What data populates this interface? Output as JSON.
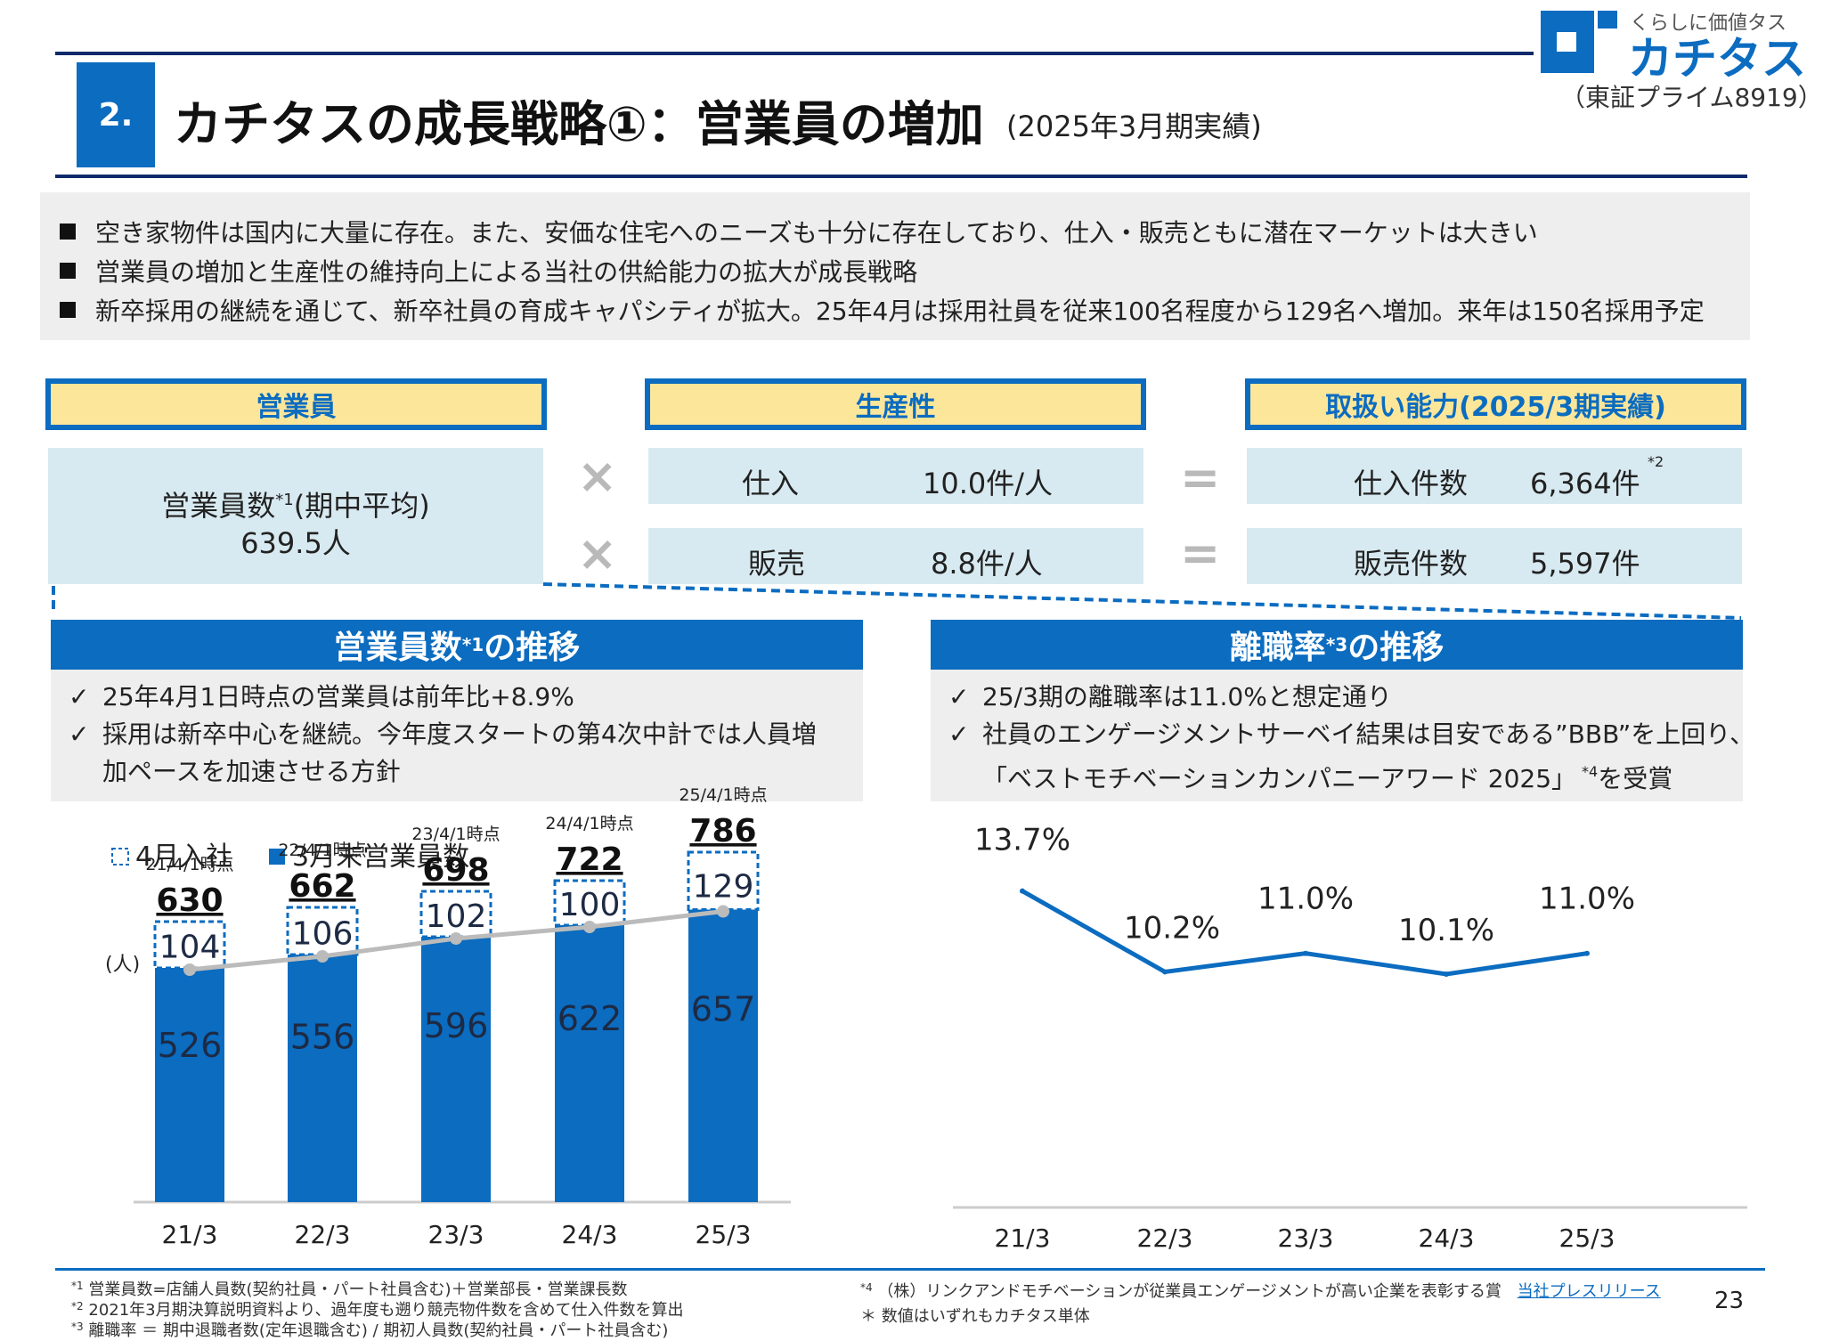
{
  "header": {
    "section_number": "2.",
    "title": "カチタスの成長戦略①：営業員の増加",
    "subtitle": "(2025年3月期実績)",
    "logo_tagline": "くらしに価値タス",
    "logo_name": "カチタス",
    "stock_code": "（東証プライム8919）"
  },
  "bullets": [
    "空き家物件は国内に大量に存在。また、安価な住宅へのニーズも十分に存在しており、仕入・販売ともに潜在マーケットは大きい",
    "営業員の増加と生産性の維持向上による当社の供給能力の拡大が成長戦略",
    "新卒採用の継続を通じて、新卒社員の育成キャパシティが拡大。25年4月は採用社員を従来100名程度から129名へ増加。来年は150名採用予定"
  ],
  "formula": {
    "staff_header": "営業員",
    "productivity_header": "生産性",
    "capacity_header": "取扱い能力(2025/3期実績)",
    "staff_label_a": "営業員数",
    "staff_label_mark": "*1",
    "staff_label_b": "(期中平均)",
    "staff_value": "639.5人",
    "multiply": "×",
    "equals": "=",
    "purchase_label": "仕入",
    "purchase_value": "10.0件/人",
    "sales_label": "販売",
    "sales_value": "8.8件/人",
    "purchase_count_label": "仕入件数",
    "purchase_count_value": "6,364件",
    "purchase_count_note": "*2",
    "sales_count_label": "販売件数",
    "sales_count_value": "5,597件"
  },
  "left_panel": {
    "title_a": "営業員数",
    "title_mark": "*1",
    "title_b": "の推移",
    "check": "✓",
    "points": [
      "25年4月1日時点の営業員は前年比+8.9%",
      "採用は新卒中心を継続。今年度スタートの第4次中計では人員増",
      "加ペースを加速させる方針"
    ]
  },
  "right_panel": {
    "title_a": "離職率",
    "title_mark": "*3",
    "title_b": "の推移",
    "check": "✓",
    "points": [
      "25/3期の離職率は11.0%と想定通り",
      "社員のエンゲージメントサーベイ結果は目安である”BBB”を上回り、",
      "「ベストモチベーションカンパニーアワード 2025」"
    ],
    "award_note": "*4",
    "award_suffix": "を受賞"
  },
  "chart_data": [
    {
      "type": "bar",
      "stacked": true,
      "title": "営業員数の推移",
      "ylabel": "(人)",
      "categories": [
        "21/3",
        "22/3",
        "23/3",
        "24/3",
        "25/3"
      ],
      "series": [
        {
          "name": "3月末営業員数",
          "values": [
            526,
            556,
            596,
            622,
            657
          ],
          "color": "#0b6cc0"
        },
        {
          "name": "4月入社",
          "values": [
            104,
            106,
            102,
            100,
            129
          ],
          "color": "#ffffff"
        }
      ],
      "totals": [
        630,
        662,
        698,
        722,
        786
      ],
      "total_labels": [
        "21/4/1時点",
        "22/4/1時点",
        "23/4/1時点",
        "24/4/1時点",
        "25/4/1時点"
      ],
      "line_series": {
        "values": [
          526,
          556,
          596,
          622,
          657
        ],
        "color": "#bbbbbb"
      },
      "ylim": [
        0,
        800
      ]
    },
    {
      "type": "line",
      "title": "離職率の推移",
      "categories": [
        "21/3",
        "22/3",
        "23/3",
        "24/3",
        "25/3"
      ],
      "values": [
        13.7,
        10.2,
        11.0,
        10.1,
        11.0
      ],
      "labels": [
        "13.7%",
        "10.2%",
        "11.0%",
        "10.1%",
        "11.0%"
      ],
      "color": "#0b6cc0",
      "ylim": [
        0,
        16
      ]
    }
  ],
  "footnotes": {
    "note1_mark": "*1",
    "note1": "営業員数=店舗人員数(契約社員・パート社員含む)＋営業部長・営業課長数",
    "note2_mark": "*2",
    "note2": "2021年3月期決算説明資料より、過年度も遡り競売物件数を含めて仕入件数を算出",
    "note3_mark": "*3",
    "note3": "離職率 ＝ 期中退職者数(定年退職含む) / 期初人員数(契約社員・パート社員含む)",
    "note4_mark": "*4",
    "note4": "（株）リンクアンドモチベーションが従業員エンゲージメントが高い企業を表彰する賞",
    "note4_link": "当社プレスリリース",
    "note5": "＊ 数値はいずれもカチタス単体"
  },
  "page_number": "23"
}
